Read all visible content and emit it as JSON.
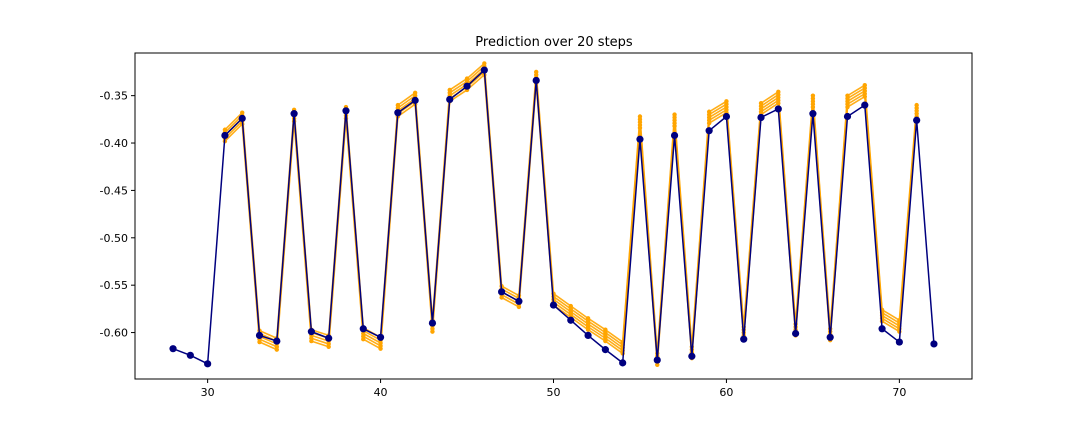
{
  "chart_data": {
    "type": "line",
    "title": "Prediction over 20 steps",
    "xlabel": "",
    "ylabel": "",
    "xlim": [
      25.8,
      74.2
    ],
    "ylim": [
      -0.649,
      -0.305
    ],
    "x_ticks": [
      30,
      40,
      50,
      60,
      70
    ],
    "x_tick_labels": [
      "30",
      "40",
      "50",
      "60",
      "70"
    ],
    "y_ticks": [
      -0.35,
      -0.4,
      -0.45,
      -0.5,
      -0.55,
      -0.6
    ],
    "y_tick_labels": [
      "-0.35",
      "-0.40",
      "-0.45",
      "-0.50",
      "-0.55",
      "-0.60"
    ],
    "grid": false,
    "legend": "none",
    "series": [
      {
        "role": "prediction",
        "color": "#ffa500",
        "x": [
          31,
          32,
          33,
          34,
          35,
          36,
          37,
          38,
          39,
          40,
          41,
          42,
          43,
          44,
          45,
          46,
          47,
          48,
          49,
          50,
          51,
          52,
          53,
          54,
          55,
          56,
          57,
          58,
          59,
          60,
          61,
          62,
          63,
          64,
          65,
          66,
          67,
          68,
          69,
          70,
          71
        ],
        "values": [
          -0.392,
          -0.374,
          -0.604,
          -0.612,
          -0.371,
          -0.603,
          -0.609,
          -0.368,
          -0.601,
          -0.611,
          -0.366,
          -0.353,
          -0.593,
          -0.35,
          -0.338,
          -0.322,
          -0.557,
          -0.567,
          -0.331,
          -0.565,
          -0.578,
          -0.591,
          -0.603,
          -0.616,
          -0.378,
          -0.628,
          -0.376,
          -0.621,
          -0.373,
          -0.362,
          -0.6,
          -0.364,
          -0.352,
          -0.597,
          -0.356,
          -0.602,
          -0.356,
          -0.345,
          -0.582,
          -0.593,
          -0.366
        ]
      },
      {
        "role": "actual",
        "color": "#00007f",
        "x": [
          28,
          29,
          30,
          31,
          32,
          33,
          34,
          35,
          36,
          37,
          38,
          39,
          40,
          41,
          42,
          43,
          44,
          45,
          46,
          47,
          48,
          49,
          50,
          51,
          52,
          53,
          54,
          55,
          56,
          57,
          58,
          59,
          60,
          61,
          62,
          63,
          64,
          65,
          66,
          67,
          68,
          69,
          70,
          71,
          72
        ],
        "values": [
          -0.617,
          -0.624,
          -0.633,
          -0.392,
          -0.374,
          -0.603,
          -0.609,
          -0.369,
          -0.599,
          -0.606,
          -0.366,
          -0.596,
          -0.605,
          -0.368,
          -0.355,
          -0.59,
          -0.354,
          -0.34,
          -0.323,
          -0.557,
          -0.567,
          -0.334,
          -0.571,
          -0.587,
          -0.603,
          -0.618,
          -0.632,
          -0.396,
          -0.629,
          -0.392,
          -0.625,
          -0.387,
          -0.372,
          -0.607,
          -0.373,
          -0.364,
          -0.601,
          -0.369,
          -0.605,
          -0.372,
          -0.36,
          -0.596,
          -0.61,
          -0.376,
          -0.612
        ]
      }
    ]
  }
}
